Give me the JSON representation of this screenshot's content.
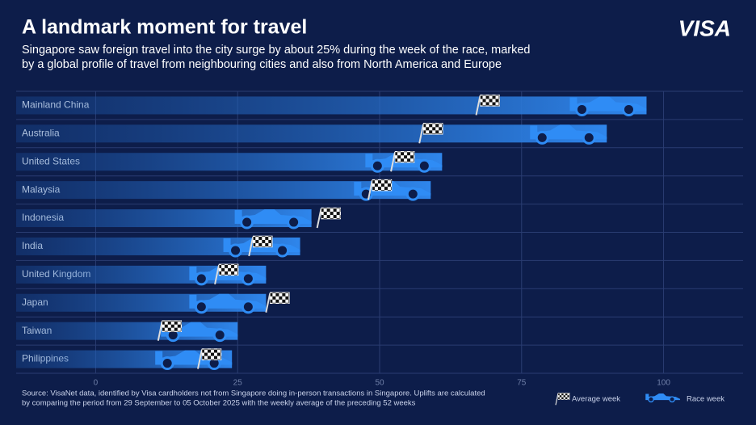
{
  "chart_data": {
    "type": "bar",
    "title": "A landmark moment for travel",
    "subtitle": [
      "Singapore saw foreign travel into the city surge by about 25% during the week of the race, marked",
      "by a global profile of travel from neighbouring cities and also from North America and Europe"
    ],
    "logo": "VISA",
    "categories": [
      "Mainland China",
      "Australia",
      "United States",
      "Malaysia",
      "Indonesia",
      "India",
      "United Kingdom",
      "Japan",
      "Taiwan",
      "Philippines"
    ],
    "series": [
      {
        "name": "Average week",
        "color": "#ffffff",
        "values": [
          67,
          57,
          52,
          48,
          39,
          27,
          21,
          30,
          11,
          18
        ]
      },
      {
        "name": "Race week",
        "color": "#2f8cf5",
        "values": [
          97,
          90,
          61,
          59,
          38,
          36,
          30,
          30,
          25,
          24
        ]
      }
    ],
    "xlim": [
      -14,
      114
    ],
    "xticks": [
      0,
      25,
      50,
      75,
      100
    ],
    "grid": true,
    "legend": "bottom-right",
    "source": [
      "Source: VisaNet data, identified by Visa cardholders not from Singapore doing in-person transactions in Singapore. Uplifts are calculated",
      "by comparing the period from 29 September to 05 October 2025 with the weekly average of the preceding 52 weeks"
    ]
  }
}
